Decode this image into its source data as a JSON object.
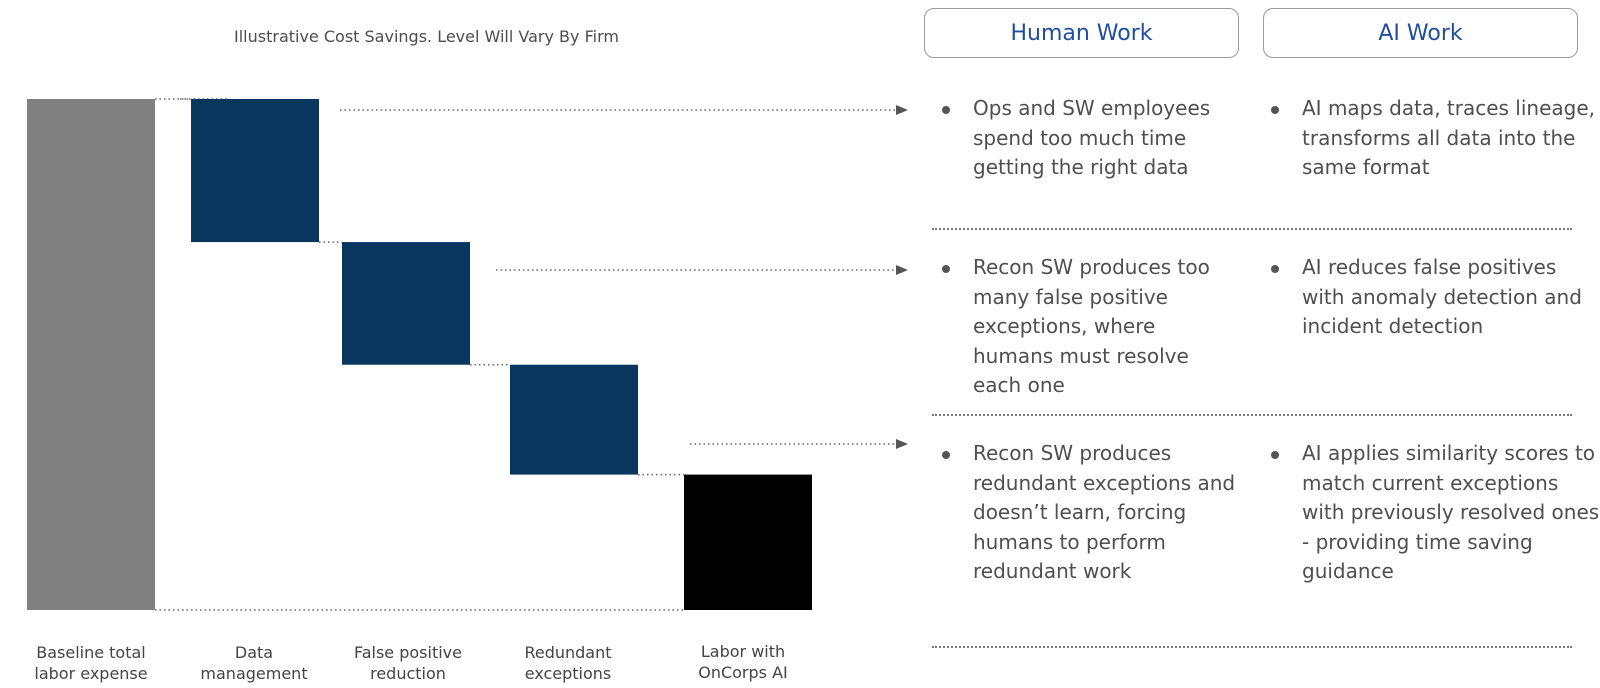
{
  "title": "Illustrative Cost Savings. Level Will Vary By Firm",
  "headers": {
    "human": "Human Work",
    "ai": "AI Work"
  },
  "rows": [
    {
      "human": "Ops and SW employees spend  too much time getting the right data",
      "ai": "AI maps data, traces lineage, transforms all data into the same format"
    },
    {
      "human": "Recon SW produces too many false positive exceptions, where humans must resolve each one",
      "ai": "AI reduces false positives with anomaly detection and incident detection"
    },
    {
      "human": "Recon SW produces redundant exceptions and doesn’t learn, forcing humans to perform redundant work",
      "ai": "AI applies similarity scores to match current exceptions with previously resolved ones - providing time saving guidance"
    }
  ],
  "chart_data": {
    "type": "waterfall",
    "title": "Illustrative Cost Savings. Level Will Vary By Firm",
    "categories": [
      "Baseline total\nlabor expense",
      "Data\nmanagement",
      "False positive\nreduction",
      "Redundant\nexceptions",
      "Labor with\nOnCorps AI"
    ],
    "bars": [
      {
        "kind": "total",
        "start": 0,
        "end": 100
      },
      {
        "kind": "decrease",
        "start": 100,
        "end": 72
      },
      {
        "kind": "decrease",
        "start": 72,
        "end": 48
      },
      {
        "kind": "decrease",
        "start": 48,
        "end": 26.5
      },
      {
        "kind": "total",
        "start": 0,
        "end": 26.5
      }
    ],
    "ylim": [
      0,
      100
    ],
    "colors": {
      "total": "#808080",
      "decrease": "#08365f",
      "final": "#000000",
      "connector": "#666666"
    }
  }
}
